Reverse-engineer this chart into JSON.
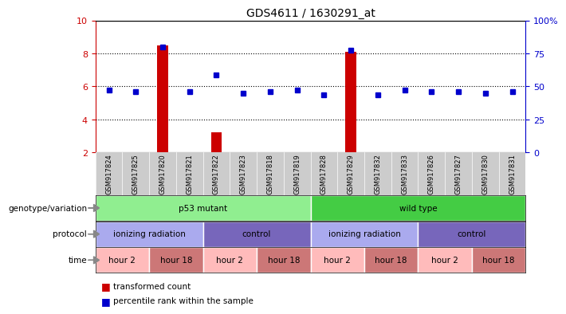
{
  "title": "GDS4611 / 1630291_at",
  "samples": [
    "GSM917824",
    "GSM917825",
    "GSM917820",
    "GSM917821",
    "GSM917822",
    "GSM917823",
    "GSM917818",
    "GSM917819",
    "GSM917828",
    "GSM917829",
    "GSM917832",
    "GSM917833",
    "GSM917826",
    "GSM917827",
    "GSM917830",
    "GSM917831"
  ],
  "red_values": [
    2.0,
    2.0,
    8.5,
    2.0,
    3.2,
    2.0,
    2.0,
    2.0,
    2.0,
    8.1,
    2.0,
    2.0,
    2.0,
    2.0,
    2.0,
    2.0
  ],
  "blue_values": [
    5.8,
    5.7,
    8.4,
    5.7,
    6.7,
    5.6,
    5.7,
    5.8,
    5.5,
    8.2,
    5.5,
    5.8,
    5.7,
    5.7,
    5.6,
    5.7
  ],
  "ylim": [
    2,
    10
  ],
  "yticks": [
    2,
    4,
    6,
    8,
    10
  ],
  "right_yticks": [
    0,
    25,
    50,
    75,
    100
  ],
  "right_ytick_labels": [
    "0",
    "25",
    "50",
    "75",
    "100%"
  ],
  "hlines": [
    4,
    6,
    8
  ],
  "genotype_groups": [
    {
      "label": "p53 mutant",
      "start": 0,
      "end": 8,
      "color": "#90EE90"
    },
    {
      "label": "wild type",
      "start": 8,
      "end": 16,
      "color": "#44CC44"
    }
  ],
  "protocol_groups": [
    {
      "label": "ionizing radiation",
      "start": 0,
      "end": 4,
      "color": "#AAAAEE"
    },
    {
      "label": "control",
      "start": 4,
      "end": 8,
      "color": "#7766BB"
    },
    {
      "label": "ionizing radiation",
      "start": 8,
      "end": 12,
      "color": "#AAAAEE"
    },
    {
      "label": "control",
      "start": 12,
      "end": 16,
      "color": "#7766BB"
    }
  ],
  "time_groups": [
    {
      "label": "hour 2",
      "start": 0,
      "end": 2,
      "color": "#FFBBBB"
    },
    {
      "label": "hour 18",
      "start": 2,
      "end": 4,
      "color": "#CC7777"
    },
    {
      "label": "hour 2",
      "start": 4,
      "end": 6,
      "color": "#FFBBBB"
    },
    {
      "label": "hour 18",
      "start": 6,
      "end": 8,
      "color": "#CC7777"
    },
    {
      "label": "hour 2",
      "start": 8,
      "end": 10,
      "color": "#FFBBBB"
    },
    {
      "label": "hour 18",
      "start": 10,
      "end": 12,
      "color": "#CC7777"
    },
    {
      "label": "hour 2",
      "start": 12,
      "end": 14,
      "color": "#FFBBBB"
    },
    {
      "label": "hour 18",
      "start": 14,
      "end": 16,
      "color": "#CC7777"
    }
  ],
  "red_color": "#CC0000",
  "blue_color": "#0000CC",
  "bar_width": 0.4,
  "blue_marker_size": 5,
  "legend_red": "transformed count",
  "legend_blue": "percentile rank within the sample",
  "axis_color": "#CC0000",
  "right_axis_color": "#0000CC",
  "sample_bg_color": "#CCCCCC",
  "arrow_color": "#888888"
}
